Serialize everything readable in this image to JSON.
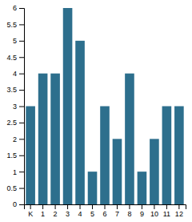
{
  "chart_data": {
    "type": "bar",
    "categories": [
      "K",
      "1",
      "2",
      "3",
      "4",
      "5",
      "6",
      "7",
      "8",
      "9",
      "10",
      "11",
      "12"
    ],
    "values": [
      3,
      4,
      4,
      6,
      5,
      1,
      3,
      2,
      4,
      1,
      2,
      3,
      3
    ],
    "color": "#2d6f8d",
    "ylim": [
      0,
      6
    ],
    "yticks": [
      0,
      0.5,
      1,
      1.5,
      2,
      2.5,
      3,
      3.5,
      4,
      4.5,
      5,
      5.5,
      6
    ],
    "grid": false
  }
}
